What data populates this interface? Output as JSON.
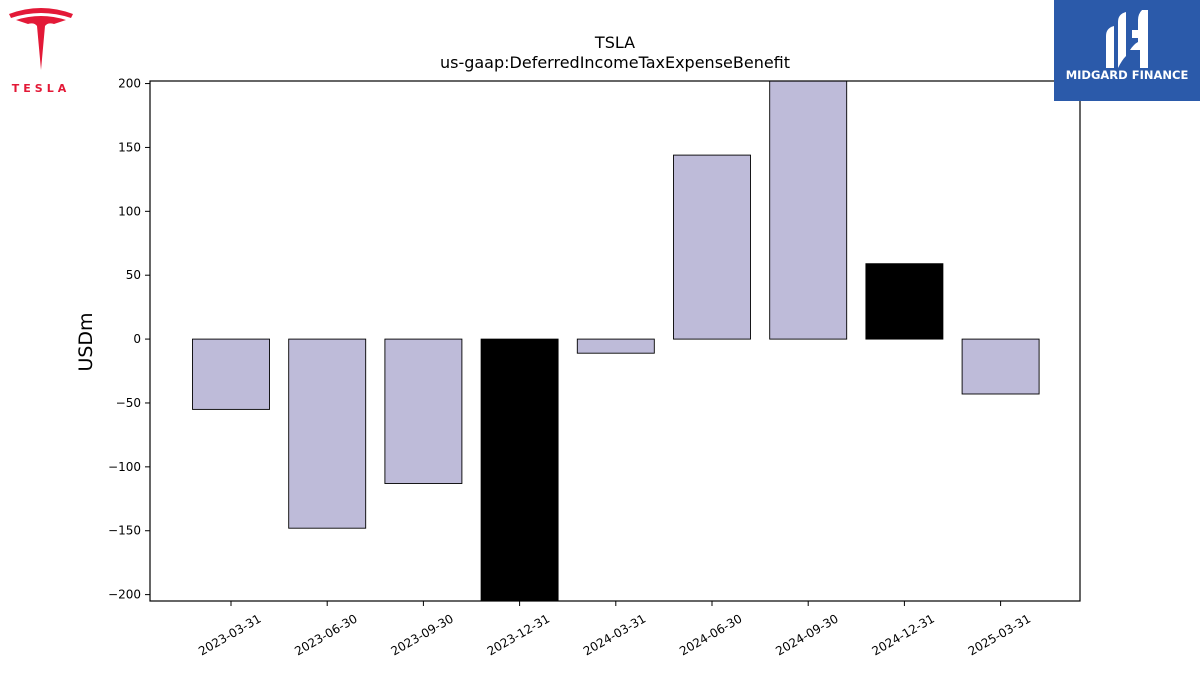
{
  "brand": {
    "company_wordmark": "TESLA",
    "company_color": "#e31937",
    "publisher": "MIDGARD FINANCE",
    "publisher_color": "#2b5aaa"
  },
  "chart_data": {
    "type": "bar",
    "title": "TSLA",
    "subtitle": "us-gaap:DeferredIncomeTaxExpenseBenefit",
    "xlabel": "",
    "ylabel": "USDm",
    "categories": [
      "2023-03-31",
      "2023-06-30",
      "2023-09-30",
      "2023-12-31",
      "2024-03-31",
      "2024-06-30",
      "2024-09-30",
      "2024-12-31",
      "2025-03-31"
    ],
    "values": [
      -55,
      -148,
      -113,
      -205,
      -11,
      144,
      202,
      59,
      -43
    ],
    "highlight": [
      false,
      false,
      false,
      true,
      false,
      false,
      false,
      true,
      false
    ],
    "colors": {
      "default": "#bebbd9",
      "highlight": "#000000"
    },
    "ylim": [
      -205,
      202
    ],
    "yticks": [
      -200,
      -150,
      -100,
      -50,
      0,
      50,
      100,
      150,
      200
    ],
    "grid": false,
    "legend": "none"
  }
}
